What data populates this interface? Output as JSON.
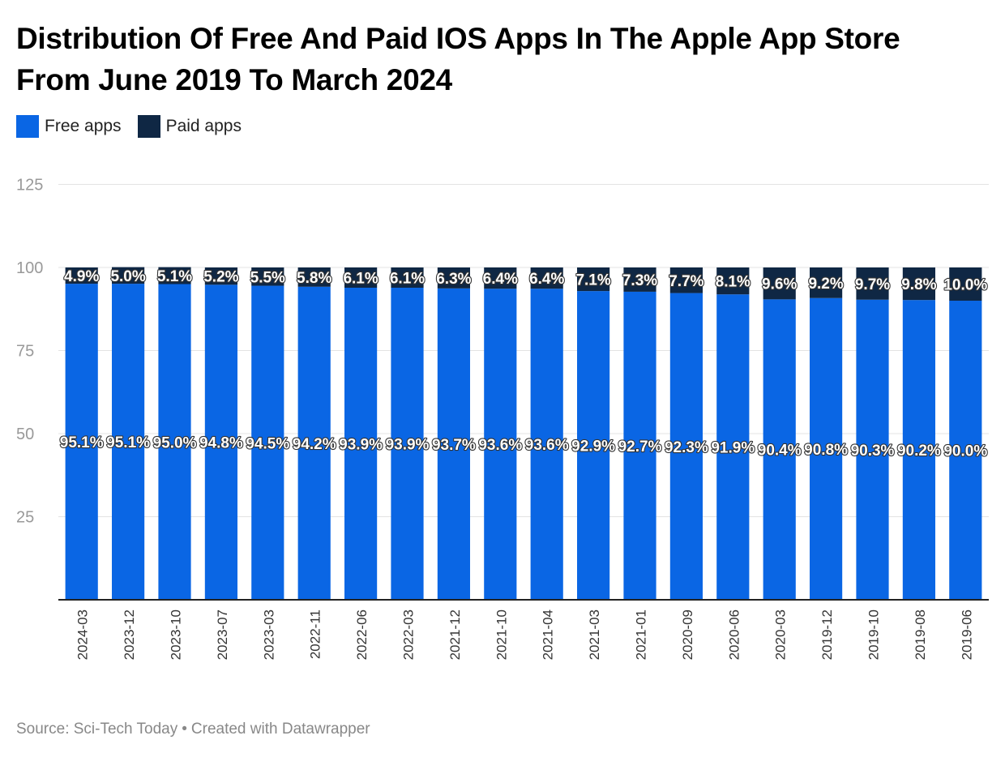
{
  "title": "Distribution Of Free And Paid IOS Apps In The Apple App Store From June 2019 To March 2024",
  "legend": [
    {
      "label": "Free apps",
      "color": "#0a66e4"
    },
    {
      "label": "Paid apps",
      "color": "#0f2744"
    }
  ],
  "footer": {
    "source": "Source: Sci-Tech Today",
    "separator": "•",
    "credit": "Created with Datawrapper"
  },
  "chart_data": {
    "type": "bar",
    "stacked": true,
    "title": "Distribution Of Free And Paid IOS Apps In The Apple App Store From June 2019 To March 2024",
    "xlabel": "",
    "ylabel": "",
    "ylim": [
      0,
      125
    ],
    "yticks": [
      25,
      50,
      75,
      100,
      125
    ],
    "grid": true,
    "legend_position": "top-left",
    "categories": [
      "2024-03",
      "2023-12",
      "2023-10",
      "2023-07",
      "2023-03",
      "2022-11",
      "2022-06",
      "2022-03",
      "2021-12",
      "2021-10",
      "2021-04",
      "2021-03",
      "2021-01",
      "2020-09",
      "2020-06",
      "2020-03",
      "2019-12",
      "2019-10",
      "2019-08",
      "2019-06"
    ],
    "series": [
      {
        "name": "Free apps",
        "color": "#0a66e4",
        "values": [
          95.1,
          95.1,
          95.0,
          94.8,
          94.5,
          94.2,
          93.9,
          93.9,
          93.7,
          93.6,
          93.6,
          92.9,
          92.7,
          92.3,
          91.9,
          90.4,
          90.8,
          90.3,
          90.2,
          90.0
        ]
      },
      {
        "name": "Paid apps",
        "color": "#0f2744",
        "values": [
          4.9,
          5.0,
          5.1,
          5.2,
          5.5,
          5.8,
          6.1,
          6.1,
          6.3,
          6.4,
          6.4,
          7.1,
          7.3,
          7.7,
          8.1,
          9.6,
          9.2,
          9.7,
          9.8,
          10.0
        ]
      }
    ],
    "value_suffix": "%"
  }
}
